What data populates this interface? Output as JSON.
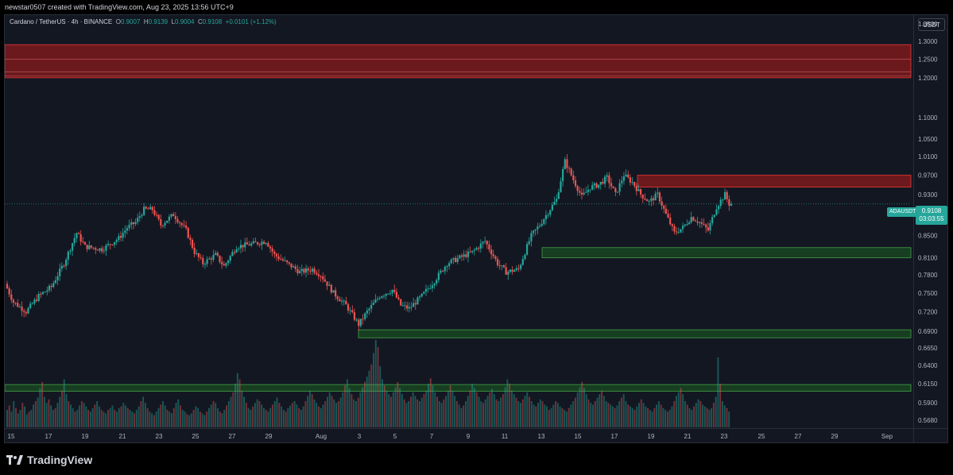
{
  "header": {
    "text": "newstar0507 created with TradingView.com, Aug 23, 2025 13:56 UTC+9"
  },
  "legend": {
    "symbol": "Cardano / TetherUS · 4h · BINANCE",
    "o_label": "O",
    "o_value": "0.9007",
    "h_label": "H",
    "h_value": "0.9139",
    "l_label": "L",
    "l_value": "0.9004",
    "c_label": "C",
    "c_value": "0.9108",
    "change": "+0.0101 (+1.12%)"
  },
  "axis": {
    "currency": "USDT"
  },
  "price_tag": {
    "symbol": "ADAUSDT",
    "price": "0.9108",
    "countdown": "03:03:55"
  },
  "footer": {
    "brand": "TradingView"
  },
  "colors": {
    "up": "#26a69a",
    "down": "#ef5350",
    "background": "#131722",
    "resistance_zone": "#b71c1c",
    "support_zone": "#1b5e20"
  },
  "chart_data": {
    "type": "candlestick",
    "symbol": "ADAUSDT",
    "interval": "4h",
    "y_scale": "log",
    "y_ticks": [
      "1.3500",
      "1.3000",
      "1.2500",
      "1.2000",
      "1.1000",
      "1.0500",
      "1.0100",
      "0.9700",
      "0.9300",
      "0.8900",
      "0.8500",
      "0.8100",
      "0.7800",
      "0.7500",
      "0.7200",
      "0.6900",
      "0.6650",
      "0.6400",
      "0.6150",
      "0.5900",
      "0.5680"
    ],
    "x_ticks": [
      "15",
      "17",
      "19",
      "21",
      "23",
      "25",
      "27",
      "29",
      "Aug",
      "3",
      "5",
      "7",
      "9",
      "11",
      "13",
      "15",
      "17",
      "19",
      "21",
      "23",
      "25",
      "27",
      "29",
      "Sep"
    ],
    "path": [
      [
        0,
        0.765
      ],
      [
        4,
        0.735
      ],
      [
        10,
        0.72
      ],
      [
        16,
        0.745
      ],
      [
        22,
        0.76
      ],
      [
        28,
        0.8
      ],
      [
        34,
        0.855
      ],
      [
        38,
        0.83
      ],
      [
        46,
        0.825
      ],
      [
        54,
        0.845
      ],
      [
        58,
        0.865
      ],
      [
        62,
        0.875
      ],
      [
        66,
        0.9
      ],
      [
        70,
        0.9
      ],
      [
        74,
        0.87
      ],
      [
        80,
        0.89
      ],
      [
        86,
        0.86
      ],
      [
        90,
        0.82
      ],
      [
        94,
        0.8
      ],
      [
        100,
        0.815
      ],
      [
        104,
        0.795
      ],
      [
        110,
        0.83
      ],
      [
        118,
        0.835
      ],
      [
        124,
        0.84
      ],
      [
        128,
        0.815
      ],
      [
        134,
        0.8
      ],
      [
        140,
        0.785
      ],
      [
        146,
        0.79
      ],
      [
        150,
        0.78
      ],
      [
        156,
        0.75
      ],
      [
        162,
        0.73
      ],
      [
        168,
        0.7
      ],
      [
        172,
        0.72
      ],
      [
        178,
        0.745
      ],
      [
        184,
        0.755
      ],
      [
        188,
        0.73
      ],
      [
        192,
        0.725
      ],
      [
        198,
        0.745
      ],
      [
        204,
        0.77
      ],
      [
        210,
        0.8
      ],
      [
        216,
        0.81
      ],
      [
        222,
        0.82
      ],
      [
        228,
        0.84
      ],
      [
        234,
        0.8
      ],
      [
        238,
        0.785
      ],
      [
        244,
        0.79
      ],
      [
        250,
        0.85
      ],
      [
        254,
        0.87
      ],
      [
        258,
        0.895
      ],
      [
        262,
        0.92
      ],
      [
        266,
        1.0
      ],
      [
        270,
        0.96
      ],
      [
        274,
        0.925
      ],
      [
        278,
        0.945
      ],
      [
        282,
        0.95
      ],
      [
        286,
        0.965
      ],
      [
        290,
        0.93
      ],
      [
        294,
        0.97
      ],
      [
        298,
        0.955
      ],
      [
        302,
        0.93
      ],
      [
        306,
        0.915
      ],
      [
        310,
        0.93
      ],
      [
        314,
        0.89
      ],
      [
        318,
        0.855
      ],
      [
        322,
        0.865
      ],
      [
        326,
        0.885
      ],
      [
        330,
        0.875
      ],
      [
        334,
        0.86
      ],
      [
        338,
        0.905
      ],
      [
        342,
        0.93
      ],
      [
        344,
        0.9108
      ]
    ],
    "volume": [
      0.2,
      0.25,
      0.18,
      0.3,
      0.22,
      0.16,
      0.2,
      0.28,
      0.24,
      0.15,
      0.18,
      0.2,
      0.26,
      0.3,
      0.34,
      0.45,
      0.52,
      0.35,
      0.28,
      0.32,
      0.25,
      0.2,
      0.22,
      0.28,
      0.35,
      0.42,
      0.55,
      0.38,
      0.3,
      0.26,
      0.22,
      0.18,
      0.2,
      0.25,
      0.3,
      0.28,
      0.24,
      0.2,
      0.18,
      0.22,
      0.26,
      0.3,
      0.24,
      0.2,
      0.18,
      0.16,
      0.2,
      0.22,
      0.25,
      0.2,
      0.18,
      0.22,
      0.24,
      0.28,
      0.25,
      0.22,
      0.2,
      0.18,
      0.16,
      0.2,
      0.24,
      0.3,
      0.35,
      0.28,
      0.22,
      0.18,
      0.16,
      0.14,
      0.18,
      0.22,
      0.26,
      0.3,
      0.25,
      0.2,
      0.18,
      0.16,
      0.22,
      0.28,
      0.32,
      0.25,
      0.2,
      0.18,
      0.15,
      0.14,
      0.16,
      0.2,
      0.24,
      0.22,
      0.18,
      0.16,
      0.14,
      0.18,
      0.22,
      0.26,
      0.3,
      0.28,
      0.22,
      0.18,
      0.16,
      0.2,
      0.25,
      0.3,
      0.35,
      0.4,
      0.5,
      0.62,
      0.55,
      0.42,
      0.35,
      0.28,
      0.22,
      0.2,
      0.24,
      0.28,
      0.32,
      0.3,
      0.26,
      0.22,
      0.2,
      0.18,
      0.22,
      0.26,
      0.3,
      0.34,
      0.28,
      0.24,
      0.2,
      0.18,
      0.22,
      0.25,
      0.28,
      0.3,
      0.26,
      0.22,
      0.2,
      0.24,
      0.3,
      0.36,
      0.42,
      0.38,
      0.32,
      0.28,
      0.24,
      0.22,
      0.26,
      0.3,
      0.35,
      0.4,
      0.36,
      0.32,
      0.28,
      0.3,
      0.34,
      0.4,
      0.48,
      0.55,
      0.45,
      0.38,
      0.32,
      0.3,
      0.34,
      0.4,
      0.46,
      0.52,
      0.58,
      0.65,
      0.72,
      0.85,
      1.0,
      0.92,
      0.7,
      0.55,
      0.48,
      0.42,
      0.38,
      0.35,
      0.4,
      0.46,
      0.52,
      0.45,
      0.38,
      0.32,
      0.28,
      0.3,
      0.35,
      0.4,
      0.36,
      0.32,
      0.3,
      0.34,
      0.38,
      0.42,
      0.5,
      0.56,
      0.48,
      0.4,
      0.35,
      0.3,
      0.28,
      0.32,
      0.36,
      0.42,
      0.48,
      0.42,
      0.36,
      0.3,
      0.26,
      0.22,
      0.25,
      0.3,
      0.36,
      0.42,
      0.5,
      0.45,
      0.4,
      0.35,
      0.3,
      0.28,
      0.32,
      0.36,
      0.4,
      0.44,
      0.38,
      0.32,
      0.3,
      0.34,
      0.38,
      0.46,
      0.55,
      0.5,
      0.42,
      0.38,
      0.34,
      0.3,
      0.28,
      0.32,
      0.36,
      0.4,
      0.35,
      0.3,
      0.26,
      0.24,
      0.28,
      0.32,
      0.3,
      0.26,
      0.24,
      0.2,
      0.22,
      0.26,
      0.3,
      0.28,
      0.24,
      0.22,
      0.2,
      0.18,
      0.22,
      0.26,
      0.3,
      0.34,
      0.4,
      0.46,
      0.52,
      0.45,
      0.38,
      0.32,
      0.28,
      0.26,
      0.3,
      0.34,
      0.38,
      0.42,
      0.36,
      0.3,
      0.28,
      0.26,
      0.24,
      0.22,
      0.25,
      0.3,
      0.34,
      0.38,
      0.3,
      0.26,
      0.24,
      0.22,
      0.2,
      0.24,
      0.28,
      0.32,
      0.28,
      0.24,
      0.22,
      0.2,
      0.18,
      0.22,
      0.26,
      0.3,
      0.26,
      0.22,
      0.2,
      0.18,
      0.2,
      0.24,
      0.3,
      0.36,
      0.4,
      0.45,
      0.38,
      0.3,
      0.26,
      0.22,
      0.2,
      0.24,
      0.28,
      0.32,
      0.3,
      0.26,
      0.24,
      0.22,
      0.2,
      0.22,
      0.28,
      0.35,
      0.8,
      0.5,
      0.3,
      0.25,
      0.22,
      0.18
    ],
    "zones": [
      {
        "kind": "resistance",
        "y1": 1.29,
        "y2": 1.2
      },
      {
        "kind": "resistance",
        "y1": 0.97,
        "y2": 0.945
      },
      {
        "kind": "support",
        "y1": 0.828,
        "y2": 0.81
      },
      {
        "kind": "support",
        "y1": 0.692,
        "y2": 0.68
      },
      {
        "kind": "support",
        "y1": 0.614,
        "y2": 0.605
      }
    ],
    "last_price": 0.9108
  }
}
